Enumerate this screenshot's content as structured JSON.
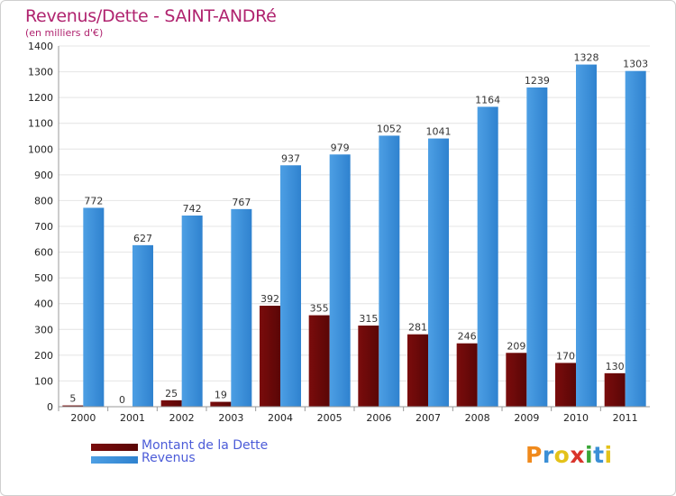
{
  "chart_data": {
    "type": "bar",
    "title": "Revenus/Dette - SAINT-ANDRé",
    "subtitle": "(en milliers d'€)",
    "categories": [
      "2000",
      "2001",
      "2002",
      "2003",
      "2004",
      "2005",
      "2006",
      "2007",
      "2008",
      "2009",
      "2010",
      "2011"
    ],
    "series": [
      {
        "name": "Montant de la Dette",
        "color": "#7a0c0c",
        "values": [
          5,
          0,
          25,
          19,
          392,
          355,
          315,
          281,
          246,
          209,
          170,
          130
        ]
      },
      {
        "name": "Revenus",
        "color": "#4d9fe4",
        "values": [
          772,
          627,
          742,
          767,
          937,
          979,
          1052,
          1041,
          1164,
          1239,
          1328,
          1303
        ]
      }
    ],
    "ylim": [
      0,
      1400
    ],
    "yticks": [
      0,
      100,
      200,
      300,
      400,
      500,
      600,
      700,
      800,
      900,
      1000,
      1100,
      1200,
      1300,
      1400
    ],
    "grid": true,
    "legend": "bottom-left",
    "xlabel": "",
    "ylabel": ""
  },
  "logo": {
    "letters": [
      "P",
      "r",
      "o",
      "x",
      "i",
      "t",
      "i"
    ],
    "colors": [
      "#f08a1c",
      "#3b8fd6",
      "#e4c21a",
      "#d9342b",
      "#3aa637",
      "#3b8fd6",
      "#e4c21a"
    ]
  }
}
